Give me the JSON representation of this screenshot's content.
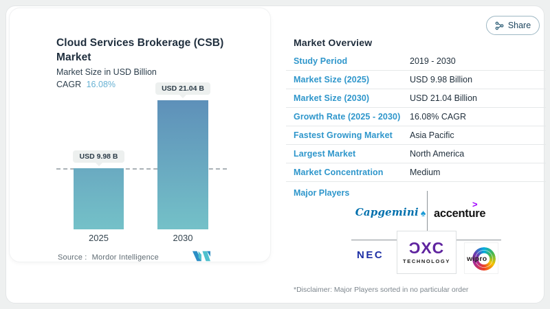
{
  "page": {
    "share_label": "Share"
  },
  "chart_card": {
    "title_line1": "Cloud Services Brokerage (CSB)",
    "title_line2": "Market",
    "subtitle": "Market Size in USD Billion",
    "cagr_label": "CAGR",
    "cagr_value": "16.08%",
    "source_label": "Source :",
    "source_value": "Mordor Intelligence",
    "logo": "mordor-intelligence-logo"
  },
  "chart_data": {
    "type": "bar",
    "title": "Cloud Services Brokerage (CSB) Market",
    "ylabel": "Market Size in USD Billion",
    "cagr": "16.08%",
    "categories": [
      "2025",
      "2030"
    ],
    "values": [
      9.98,
      21.04
    ],
    "bar_labels": [
      "USD 9.98 B",
      "USD 21.04 B"
    ],
    "unit": "USD Billion",
    "annotations": "horizontal dashed reference line at 2025 bar top",
    "grid": false,
    "bar_gradients": [
      [
        "#6aaac1",
        "#74c1c8"
      ],
      [
        "#5e90b9",
        "#74c1c8"
      ]
    ],
    "label_pill_bg": "#edf0ef",
    "dashed_line_color": "#a9b1b6"
  },
  "overview": {
    "heading": "Market Overview",
    "rows": [
      {
        "label": "Study Period",
        "value": "2019 - 2030"
      },
      {
        "label": "Market Size (2025)",
        "value": "USD 9.98 Billion"
      },
      {
        "label": "Market Size (2030)",
        "value": "USD 21.04 Billion"
      },
      {
        "label": "Growth Rate (2025 - 2030)",
        "value": "16.08% CAGR"
      },
      {
        "label": "Fastest Growing Market",
        "value": "Asia Pacific"
      },
      {
        "label": "Largest Market",
        "value": "North America"
      },
      {
        "label": "Market Concentration",
        "value": "Medium"
      }
    ],
    "major_players_label": "Major Players",
    "players": [
      "Capgemini",
      "accenture",
      "NEC",
      "DXC Technology",
      "wipro"
    ],
    "disclaimer": "*Disclaimer: Major Players sorted in no particular order",
    "label_color": "#2e96cb",
    "value_color": "#1f2e3b"
  },
  "logos": {
    "capgemini_text": "Capgemini",
    "capgemini_color": "#0070ad",
    "accenture_text": "accenture",
    "accenture_mark": ">",
    "accenture_mark_color": "#a100ff",
    "nec_text": "NEC",
    "nec_color": "#1d2fa5",
    "dxc_text": "ƆXC",
    "dxc_sub": "TECHNOLOGY",
    "dxc_color": "#5f249f",
    "wipro_text": "wipro"
  }
}
